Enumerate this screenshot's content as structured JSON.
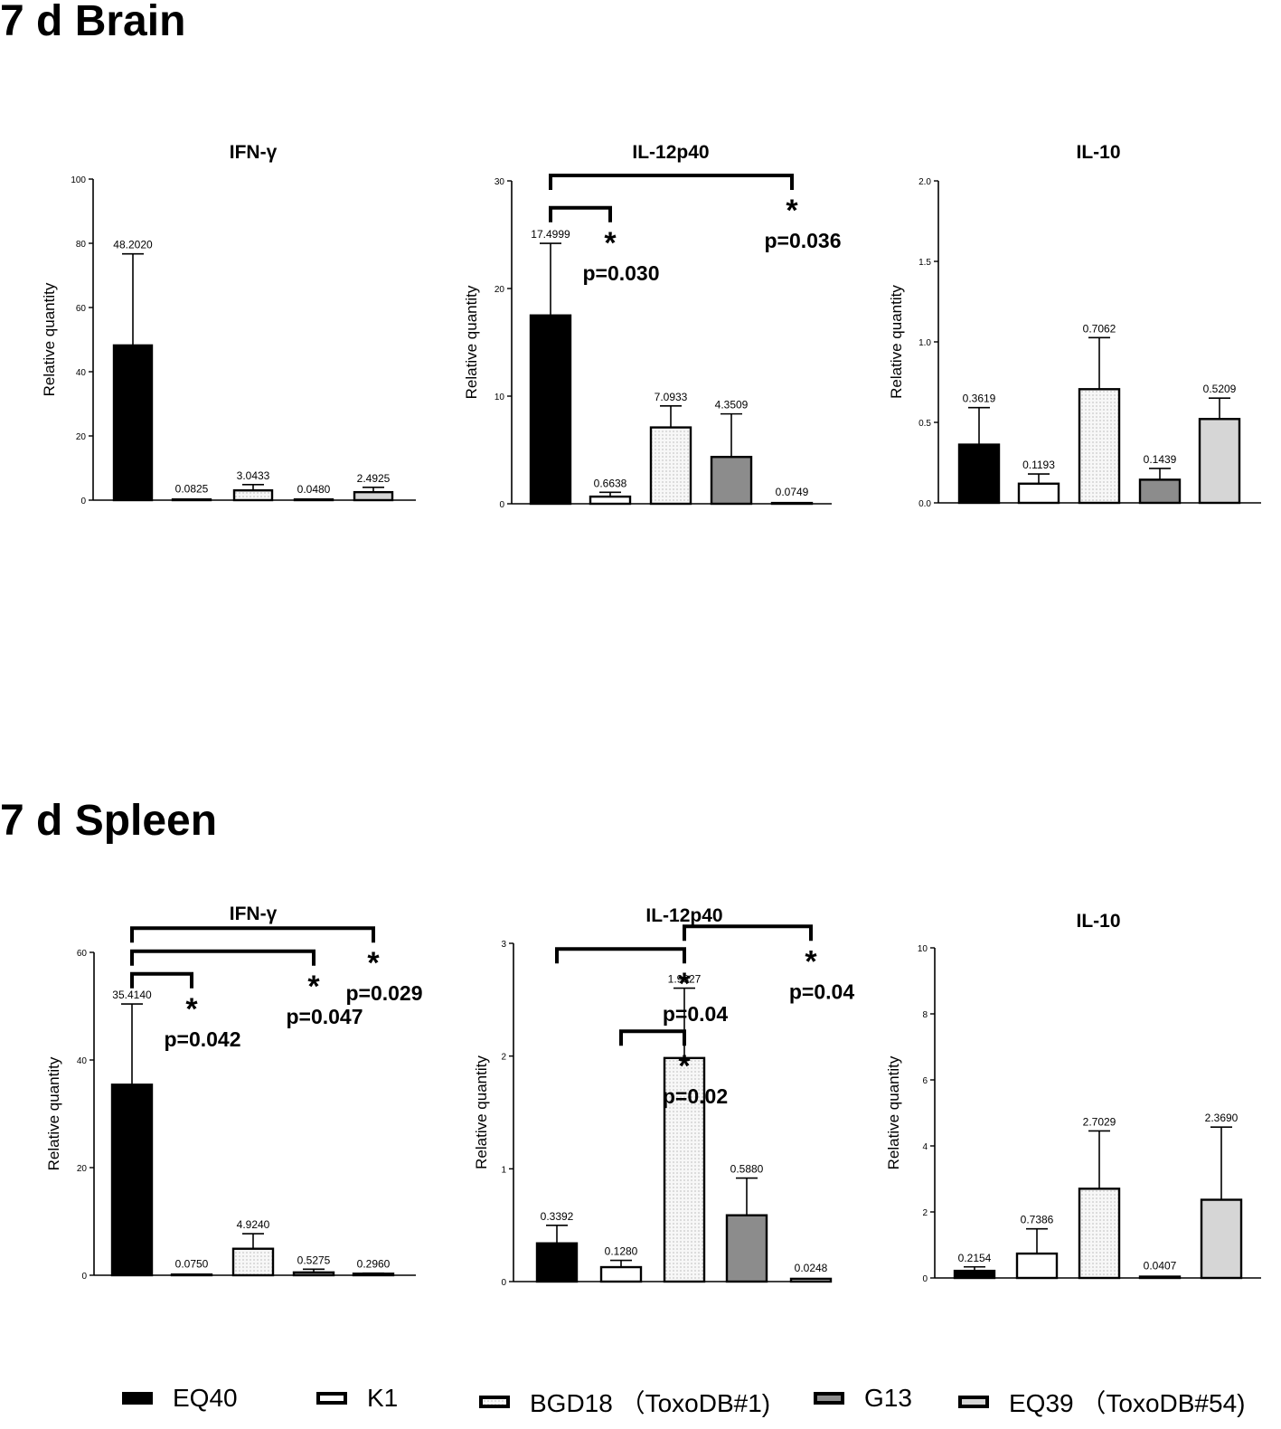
{
  "page": {
    "brain_title": "7 d Brain",
    "spleen_title": "7 d Spleen"
  },
  "legend": [
    {
      "label": "EQ40",
      "fill": "#000000",
      "pattern": "solid"
    },
    {
      "label": "K1",
      "fill": "#ffffff",
      "pattern": "none"
    },
    {
      "label": "BGD18 （ToxoDB#1)",
      "fill": "#f4f4f4",
      "pattern": "dots"
    },
    {
      "label": "G13",
      "fill": "#8c8c8c",
      "pattern": "solid"
    },
    {
      "label": "EQ39 （ToxoDB#54)",
      "fill": "#d6d6d6",
      "pattern": "solid"
    }
  ],
  "chart_data": [
    {
      "type": "bar",
      "section": "brain",
      "title": "IFN-γ",
      "ylabel": "Relative quantity",
      "ylim": [
        0,
        100
      ],
      "yticks": [
        "0",
        "20",
        "40",
        "60",
        "80",
        "100"
      ],
      "categories": [
        "EQ40",
        "K1",
        "BGD18",
        "G13",
        "EQ39"
      ],
      "values": [
        48.202,
        0.0825,
        3.0433,
        0.048,
        2.4925
      ],
      "errors": [
        28.5,
        0.0,
        1.8,
        0.0,
        1.5
      ],
      "value_labels": [
        "48.2020",
        "0.0825",
        "3.0433",
        "0.0480",
        "2.4925"
      ],
      "significance": []
    },
    {
      "type": "bar",
      "section": "brain",
      "title": "IL-12p40",
      "ylabel": "Relative quantity",
      "ylim": [
        0,
        30
      ],
      "yticks": [
        "0",
        "10",
        "20",
        "30"
      ],
      "categories": [
        "EQ40",
        "K1",
        "BGD18",
        "G13",
        "EQ39"
      ],
      "values": [
        17.4999,
        0.6638,
        7.0933,
        4.3509,
        0.0749
      ],
      "errors": [
        6.7,
        0.4,
        2.0,
        4.0,
        0.0
      ],
      "value_labels": [
        "17.4999",
        "0.6638",
        "7.0933",
        "4.3509",
        "0.0749"
      ],
      "significance": [
        {
          "from": 0,
          "to": 1,
          "level": 27.5,
          "star": "*",
          "p": "p=0.030"
        },
        {
          "from": 0,
          "to": 4,
          "level": 30.5,
          "star": "*",
          "p": "p=0.036"
        }
      ]
    },
    {
      "type": "bar",
      "section": "brain",
      "title": "IL-10",
      "ylabel": "Relative quantity",
      "ylim": [
        0,
        2.0
      ],
      "yticks": [
        "0.0",
        "0.5",
        "1.0",
        "1.5",
        "2.0"
      ],
      "categories": [
        "EQ40",
        "K1",
        "BGD18",
        "G13",
        "EQ39"
      ],
      "values": [
        0.3619,
        0.1193,
        0.7062,
        0.1439,
        0.5209
      ],
      "errors": [
        0.23,
        0.06,
        0.32,
        0.07,
        0.13
      ],
      "value_labels": [
        "0.3619",
        "0.1193",
        "0.7062",
        "0.1439",
        "0.5209"
      ],
      "significance": []
    },
    {
      "type": "bar",
      "section": "spleen",
      "title": "IFN-γ",
      "ylabel": "Relative quantity",
      "ylim": [
        0,
        60
      ],
      "yticks": [
        "0",
        "20",
        "40",
        "60"
      ],
      "categories": [
        "EQ40",
        "K1",
        "BGD18",
        "G13",
        "EQ39"
      ],
      "values": [
        35.414,
        0.075,
        4.924,
        0.5275,
        0.296
      ],
      "errors": [
        15.0,
        0.0,
        2.8,
        0.6,
        0.1
      ],
      "value_labels": [
        "35.4140",
        "0.0750",
        "4.9240",
        "0.5275",
        "0.2960"
      ],
      "significance": [
        {
          "from": 0,
          "to": 1,
          "level": 56.0,
          "star": "*",
          "p": "p=0.042"
        },
        {
          "from": 0,
          "to": 3,
          "level": 60.2,
          "star": "*",
          "p": "p=0.047"
        },
        {
          "from": 0,
          "to": 4,
          "level": 64.5,
          "star": "*",
          "p": "p=0.029"
        }
      ]
    },
    {
      "type": "bar",
      "section": "spleen",
      "title": "IL-12p40",
      "ylabel": "Relative quantity",
      "ylim": [
        0,
        3
      ],
      "yticks": [
        "0",
        "1",
        "2",
        "3"
      ],
      "categories": [
        "EQ40",
        "K1",
        "BGD18",
        "G13",
        "EQ39"
      ],
      "values": [
        0.3392,
        0.128,
        1.9827,
        0.588,
        0.0248
      ],
      "errors": [
        0.16,
        0.06,
        0.62,
        0.33,
        0.0
      ],
      "value_labels": [
        "0.3392",
        "0.1280",
        "1.9827",
        "0.5880",
        "0.0248"
      ],
      "significance": [
        {
          "from": 0,
          "to": 2,
          "level": 2.95,
          "star": "*",
          "p": "p=0.04"
        },
        {
          "from": 1,
          "to": 2,
          "level": 2.22,
          "star": "*",
          "p": "p=0.02"
        },
        {
          "from": 2,
          "to": 4,
          "level": 3.15,
          "star": "*",
          "p": "p=0.04"
        }
      ]
    },
    {
      "type": "bar",
      "section": "spleen",
      "title": "IL-10",
      "ylabel": "Relative quantity",
      "ylim": [
        0,
        10
      ],
      "yticks": [
        "0",
        "2",
        "4",
        "6",
        "8",
        "10"
      ],
      "categories": [
        "EQ40",
        "K1",
        "BGD18",
        "G13",
        "EQ39"
      ],
      "values": [
        0.2154,
        0.7386,
        2.7029,
        0.0407,
        2.369
      ],
      "errors": [
        0.12,
        0.75,
        1.75,
        0.0,
        2.2
      ],
      "value_labels": [
        "0.2154",
        "0.7386",
        "2.7029",
        "0.0407",
        "2.3690"
      ],
      "significance": []
    }
  ]
}
